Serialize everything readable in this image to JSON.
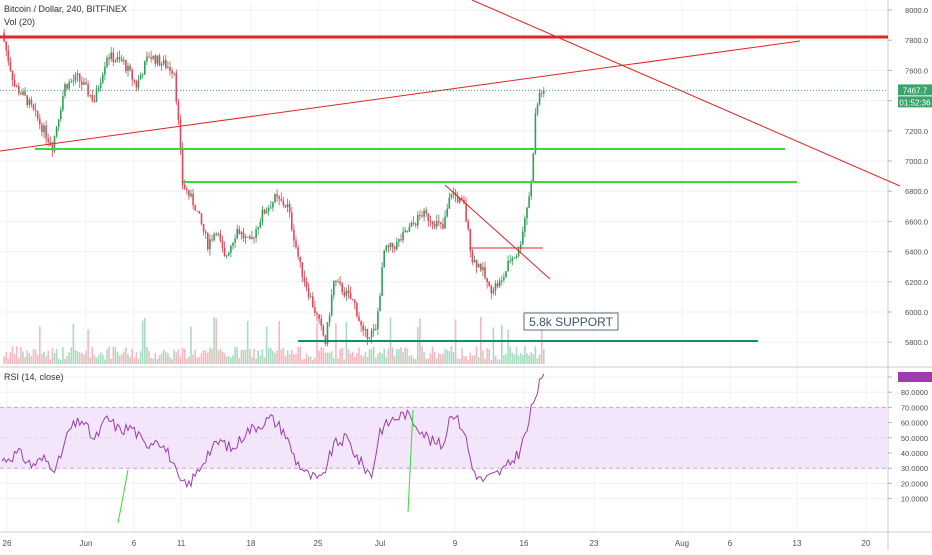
{
  "header": {
    "symbol": "Bitcoin / Dollar, 240, BITFINEX",
    "vol_label": "Vol (20)",
    "rsi_label": "RSI (14, close)"
  },
  "colors": {
    "up": "#2e9e5a",
    "down": "#e0475b",
    "resistance": "#e02525",
    "support": "#33dd33",
    "support_dark": "#11906a",
    "rsi_line": "#9b3eab",
    "rsi_band": "#f3e6fb",
    "price_tag": "#3aa46c"
  },
  "chart_data": [
    {
      "type": "candlestick",
      "panel": "price",
      "ylim": [
        5700,
        8100
      ],
      "y_ticks": [
        "8000.0",
        "7800.0",
        "7600.0",
        "7400.0",
        "7200.0",
        "7000.0",
        "6800.0",
        "6600.0",
        "6400.0",
        "6200.0",
        "6000.0",
        "5800.0"
      ],
      "x_ticks": [
        "26",
        "Jun",
        "6",
        "11",
        "18",
        "25",
        "Jul",
        "9",
        "16",
        "23",
        "Aug",
        "6",
        "13",
        "20"
      ],
      "last_price": "7467.7",
      "countdown": "01:52:36",
      "annotation": "5.8k SUPPORT",
      "waypoints": [
        [
          0,
          7850
        ],
        [
          6,
          7500
        ],
        [
          12,
          7400
        ],
        [
          18,
          7250
        ],
        [
          24,
          7100
        ],
        [
          30,
          7500
        ],
        [
          36,
          7550
        ],
        [
          44,
          7400
        ],
        [
          50,
          7700
        ],
        [
          58,
          7650
        ],
        [
          64,
          7500
        ],
        [
          70,
          7700
        ],
        [
          76,
          7650
        ],
        [
          82,
          7600
        ],
        [
          84,
          7250
        ],
        [
          86,
          6850
        ],
        [
          92,
          6700
        ],
        [
          98,
          6450
        ],
        [
          102,
          6550
        ],
        [
          106,
          6350
        ],
        [
          112,
          6550
        ],
        [
          118,
          6450
        ],
        [
          124,
          6650
        ],
        [
          130,
          6750
        ],
        [
          136,
          6700
        ],
        [
          142,
          6300
        ],
        [
          148,
          6050
        ],
        [
          154,
          5800
        ],
        [
          158,
          6200
        ],
        [
          162,
          6150
        ],
        [
          168,
          6050
        ],
        [
          172,
          5850
        ],
        [
          178,
          5870
        ],
        [
          182,
          6400
        ],
        [
          188,
          6450
        ],
        [
          194,
          6550
        ],
        [
          200,
          6650
        ],
        [
          206,
          6600
        ],
        [
          210,
          6550
        ],
        [
          214,
          6800
        ],
        [
          220,
          6700
        ],
        [
          224,
          6350
        ],
        [
          228,
          6300
        ],
        [
          232,
          6150
        ],
        [
          238,
          6200
        ],
        [
          242,
          6350
        ],
        [
          246,
          6400
        ],
        [
          250,
          6700
        ],
        [
          252,
          6850
        ],
        [
          254,
          7300
        ],
        [
          256,
          7450
        ],
        [
          258,
          7467
        ]
      ]
    },
    {
      "type": "line",
      "panel": "rsi",
      "name": "RSI (14, close)",
      "ylim": [
        10,
        95
      ],
      "y_ticks": [
        "90.0000",
        "80.0000",
        "70.0000",
        "60.0000",
        "50.0000",
        "40.0000",
        "30.0000",
        "20.0000",
        "10.0000"
      ],
      "band": [
        30,
        70
      ],
      "waypoints": [
        [
          0,
          35
        ],
        [
          8,
          40
        ],
        [
          14,
          32
        ],
        [
          20,
          36
        ],
        [
          26,
          30
        ],
        [
          32,
          55
        ],
        [
          38,
          62
        ],
        [
          44,
          48
        ],
        [
          50,
          63
        ],
        [
          56,
          55
        ],
        [
          62,
          57
        ],
        [
          68,
          45
        ],
        [
          74,
          50
        ],
        [
          80,
          38
        ],
        [
          84,
          22
        ],
        [
          88,
          18
        ],
        [
          92,
          25
        ],
        [
          98,
          40
        ],
        [
          104,
          48
        ],
        [
          110,
          42
        ],
        [
          116,
          54
        ],
        [
          122,
          58
        ],
        [
          128,
          63
        ],
        [
          134,
          55
        ],
        [
          140,
          35
        ],
        [
          146,
          25
        ],
        [
          152,
          22
        ],
        [
          158,
          45
        ],
        [
          164,
          50
        ],
        [
          170,
          35
        ],
        [
          176,
          25
        ],
        [
          180,
          55
        ],
        [
          186,
          62
        ],
        [
          192,
          66
        ],
        [
          198,
          58
        ],
        [
          204,
          48
        ],
        [
          210,
          45
        ],
        [
          214,
          68
        ],
        [
          220,
          55
        ],
        [
          224,
          30
        ],
        [
          228,
          22
        ],
        [
          234,
          25
        ],
        [
          240,
          30
        ],
        [
          246,
          40
        ],
        [
          250,
          55
        ],
        [
          252,
          68
        ],
        [
          254,
          78
        ],
        [
          256,
          85
        ],
        [
          258,
          90
        ]
      ]
    }
  ]
}
